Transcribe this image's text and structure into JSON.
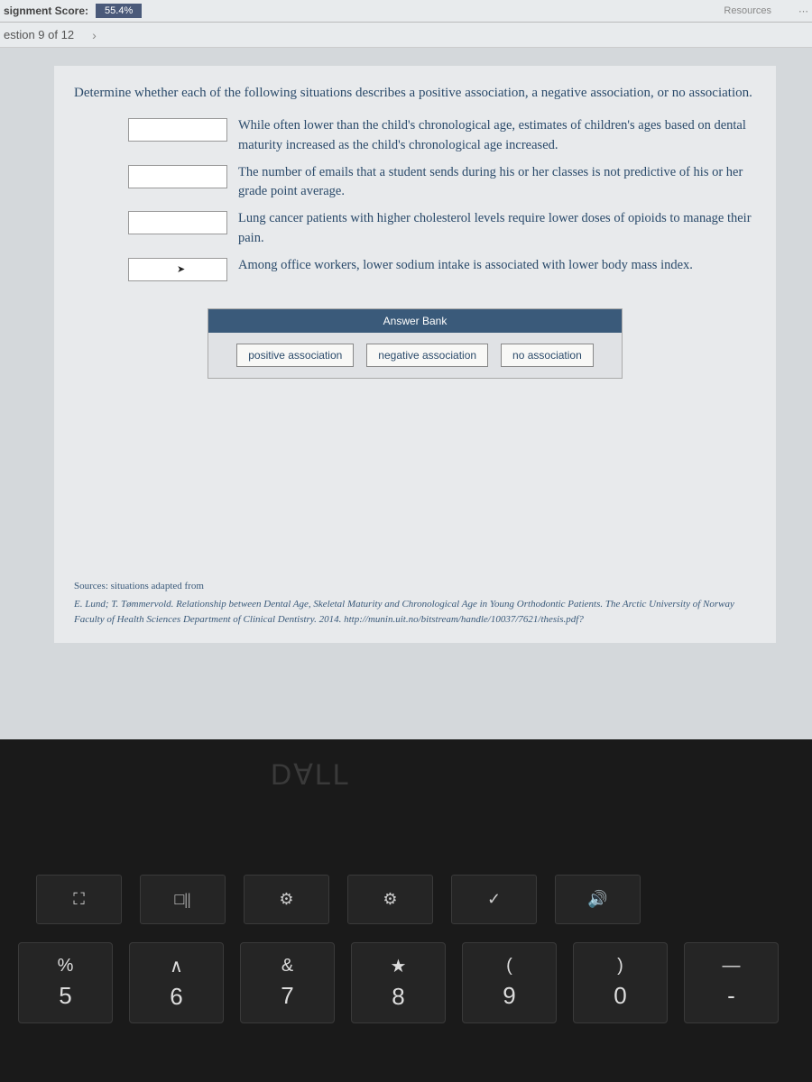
{
  "topbar": {
    "score_label": "signment Score:",
    "score_value": "55.4%",
    "resources_label": "Resources"
  },
  "nav": {
    "question_counter": "estion 9 of 12",
    "chevron": "›"
  },
  "question": {
    "prompt": "Determine whether each of the following situations describes a positive association, a negative association, or no association."
  },
  "situations": [
    {
      "text": "While often lower than the child's chronological age, estimates of children's ages based on dental maturity increased as the child's chronological age increased."
    },
    {
      "text": "The number of emails that a student sends during his or her classes is not predictive of his or her grade point average."
    },
    {
      "text": "Lung cancer patients with higher cholesterol levels require lower doses of opioids to manage their pain."
    },
    {
      "text": "Among office workers, lower sodium intake is associated with lower body mass index."
    }
  ],
  "answer_bank": {
    "header": "Answer Bank",
    "items": [
      "positive association",
      "negative association",
      "no association"
    ]
  },
  "sources": {
    "title": "Sources: situations adapted from",
    "detail": "E. Lund; T. Tømmervold. Relationship between Dental Age, Skeletal Maturity and Chronological Age in Young Orthodontic Patients. The Arctic University of Norway Faculty of Health Sciences Department of Clinical Dentistry. 2014. http://munin.uit.no/bitstream/handle/10037/7621/thesis.pdf?"
  },
  "dell": "D∀LL",
  "fn_keys": [
    "⛶",
    "□||",
    "⚙",
    "⚙",
    "✓",
    "🔊"
  ],
  "num_keys": [
    {
      "upper": "%",
      "lower": "5"
    },
    {
      "upper": "∧",
      "lower": "6"
    },
    {
      "upper": "&",
      "lower": "7"
    },
    {
      "upper": "★",
      "lower": "8"
    },
    {
      "upper": "(",
      "lower": "9"
    },
    {
      "upper": ")",
      "lower": "0"
    },
    {
      "upper": "—",
      "lower": "-"
    },
    {
      "upper": "+",
      "lower": ""
    }
  ]
}
